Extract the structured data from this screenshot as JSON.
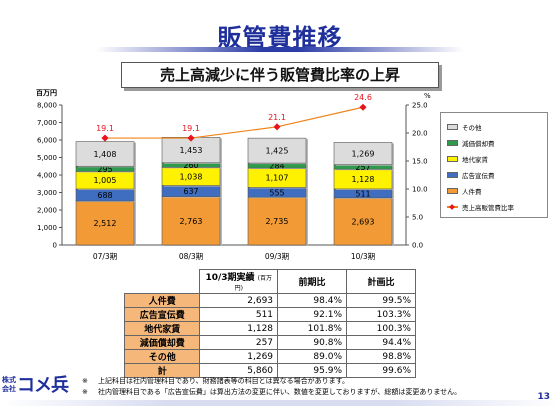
{
  "title": "販管費推移",
  "subtitle": "売上高減少に伴う販管費比率の上昇",
  "chart_data": {
    "type": "bar",
    "stacked": true,
    "y_unit_label": "百万円",
    "y2_unit_label": "%",
    "ylim": [
      0,
      8000
    ],
    "yticks": [
      "8,000",
      "7,000",
      "6,000",
      "5,000",
      "4,000",
      "3,000",
      "2,000",
      "1,000",
      "0"
    ],
    "y2lim": [
      0,
      25
    ],
    "y2ticks": [
      "25.0",
      "20.0",
      "15.0",
      "10.0",
      "5.0",
      "0.0"
    ],
    "categories": [
      "07/3期",
      "08/3期",
      "09/3期",
      "10/3期"
    ],
    "series": [
      {
        "name": "人件費",
        "values": [
          2512,
          2763,
          2735,
          2693
        ],
        "labels": [
          "2,512",
          "2,763",
          "2,735",
          "2,693"
        ],
        "color": "#f29a36"
      },
      {
        "name": "広告宣伝費",
        "values": [
          688,
          637,
          555,
          511
        ],
        "labels": [
          "688",
          "637",
          "555",
          "511"
        ],
        "color": "#3f6ec1"
      },
      {
        "name": "地代家賃",
        "values": [
          1005,
          1038,
          1107,
          1128
        ],
        "labels": [
          "1,005",
          "1,038",
          "1,107",
          "1,128"
        ],
        "color": "#fff200"
      },
      {
        "name": "減価償却費",
        "values": [
          295,
          260,
          284,
          257
        ],
        "labels": [
          "295",
          "260",
          "284",
          "257"
        ],
        "color": "#2e9b4c"
      },
      {
        "name": "その他",
        "values": [
          1408,
          1453,
          1425,
          1269
        ],
        "labels": [
          "1,408",
          "1,453",
          "1,425",
          "1,269"
        ],
        "color": "#dcdcdc"
      }
    ],
    "line": {
      "name": "売上高販管費比率",
      "values": [
        19.1,
        19.1,
        21.1,
        24.6
      ],
      "labels": [
        "19.1",
        "19.1",
        "21.1",
        "24.6"
      ],
      "color": "#f08418",
      "marker_color": "#e8131c"
    },
    "legend_order": [
      "その他",
      "減価償却費",
      "地代家賃",
      "広告宣伝費",
      "人件費",
      "売上高販管費比率"
    ],
    "legend_position": "right",
    "grid": false
  },
  "table": {
    "headers": [
      "10/3期実績",
      "(百万円)",
      "前期比",
      "計画比"
    ],
    "rows": [
      {
        "label": "人件費",
        "value": "2,693",
        "yoy": "98.4%",
        "plan": "99.5%"
      },
      {
        "label": "広告宣伝費",
        "value": "511",
        "yoy": "92.1%",
        "plan": "103.3%"
      },
      {
        "label": "地代家賃",
        "value": "1,128",
        "yoy": "101.8%",
        "plan": "100.3%"
      },
      {
        "label": "減価償却費",
        "value": "257",
        "yoy": "90.8%",
        "plan": "94.4%"
      },
      {
        "label": "その他",
        "value": "1,269",
        "yoy": "89.0%",
        "plan": "98.8%"
      },
      {
        "label": "計",
        "value": "5,860",
        "yoy": "95.9%",
        "plan": "99.6%"
      }
    ]
  },
  "notes": [
    {
      "mark": "※",
      "text": "上記科目は社内管理科目であり、財務諸表等の科目とは異なる場合があります。"
    },
    {
      "mark": "※",
      "text": "社内管理科目である「広告宣伝費」は算出方法の変更に伴い、数値を変更しておりますが、総額は変更ありません。"
    }
  ],
  "logo": {
    "small": "株式会社",
    "big": "コメ兵"
  },
  "page_number": "13"
}
